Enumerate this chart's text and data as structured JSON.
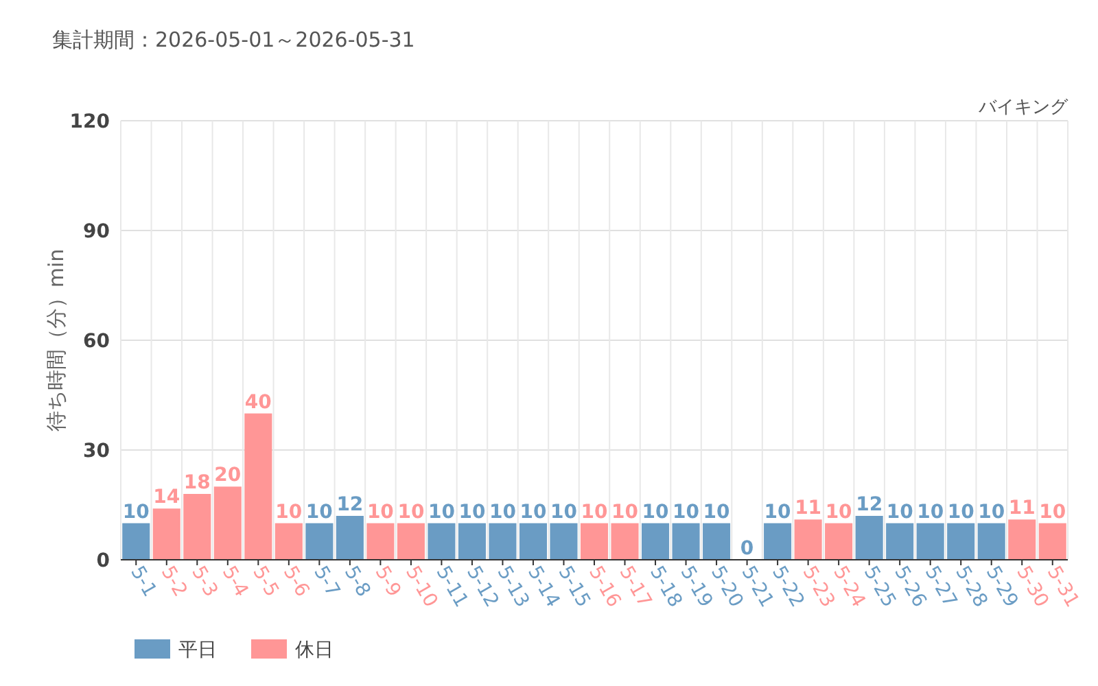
{
  "chart_data": {
    "type": "bar",
    "title": "集計期間：2026-05-01～2026-05-31",
    "subtitle": "バイキング",
    "ylabel": "待ち時間（分）min",
    "categories": [
      "5-1",
      "5-2",
      "5-3",
      "5-4",
      "5-5",
      "5-6",
      "5-7",
      "5-8",
      "5-9",
      "5-10",
      "5-11",
      "5-12",
      "5-13",
      "5-14",
      "5-15",
      "5-16",
      "5-17",
      "5-18",
      "5-19",
      "5-20",
      "5-21",
      "5-22",
      "5-23",
      "5-24",
      "5-25",
      "5-26",
      "5-27",
      "5-28",
      "5-29",
      "5-30",
      "5-31"
    ],
    "series": [
      {
        "name": "平日",
        "color": "#6a9cc4",
        "values": [
          10,
          null,
          null,
          null,
          null,
          null,
          10,
          12,
          null,
          null,
          10,
          10,
          10,
          10,
          10,
          null,
          null,
          10,
          10,
          10,
          0,
          10,
          null,
          null,
          12,
          10,
          10,
          10,
          10,
          null,
          null
        ]
      },
      {
        "name": "休日",
        "color": "#ff9696",
        "values": [
          null,
          14,
          18,
          20,
          40,
          10,
          null,
          null,
          10,
          10,
          null,
          null,
          null,
          null,
          null,
          10,
          10,
          null,
          null,
          null,
          null,
          null,
          11,
          10,
          null,
          null,
          null,
          null,
          null,
          11,
          10
        ]
      }
    ],
    "ylim": [
      0,
      120
    ],
    "yticks": [
      0,
      30,
      60,
      90,
      120
    ],
    "grid": true,
    "data_labels": true,
    "legend": "bottom left"
  }
}
